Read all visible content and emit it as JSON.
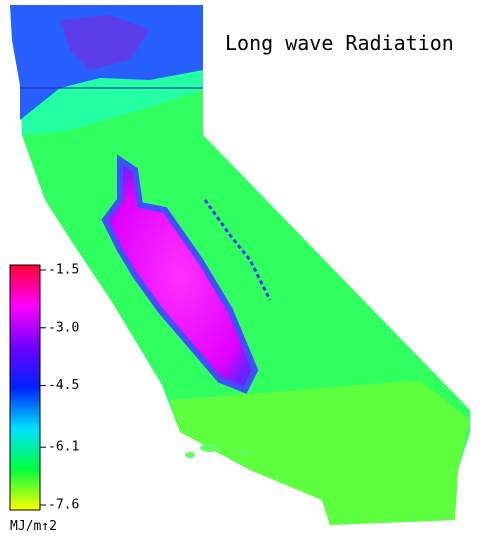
{
  "title": "Long wave Radiation",
  "colorbar": {
    "lim": [
      -7.6,
      -1.5
    ],
    "ticks": [
      -1.5,
      {
        "value": -3,
        "label": "-3.0"
      },
      -4.5,
      -6.1,
      -7.6
    ],
    "colors": [
      "#ff0030",
      "#ff00ff",
      "#7000ff",
      "#0020ff",
      "#00e0ff",
      "#00ff40",
      "#ffff00"
    ],
    "unit_label": "MJ/m↑2"
  }
}
